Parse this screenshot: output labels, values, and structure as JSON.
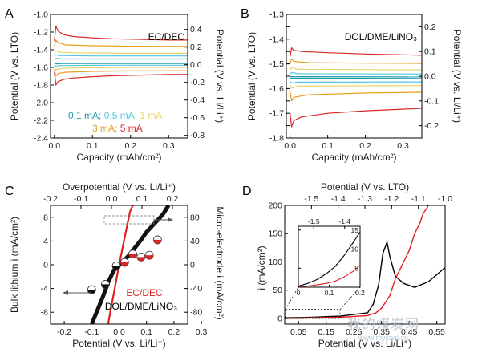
{
  "chart_data": [
    {
      "panel": "A",
      "type": "line",
      "xlabel": "Capacity (mAh/cm²)",
      "ylabel": "Potential (V vs. LTO)",
      "ylabel_right": "Potential (V vs. Li/Li⁺)",
      "xlim": [
        -0.01,
        0.35
      ],
      "ylim": [
        -2.4,
        -1.0
      ],
      "ylim_right": [
        -0.83,
        0.57
      ],
      "xticks": [
        "0.0",
        "0.1",
        "0.2",
        "0.3"
      ],
      "xtick_values": [
        0,
        0.1,
        0.2,
        0.3
      ],
      "yticks": [
        "-2.4",
        "-2.2",
        "-2.0",
        "-1.8",
        "-1.6",
        "-1.4",
        "-1.2",
        "-1.0"
      ],
      "ytick_values": [
        -2.4,
        -2.2,
        -2.0,
        -1.8,
        -1.6,
        -1.4,
        -1.2,
        -1.0
      ],
      "yticks_right": [
        "-0.8",
        "-0.6",
        "-0.4",
        "-0.2",
        "0.0",
        "0.2",
        "0.4"
      ],
      "ytick_right_values": [
        -0.8,
        -0.6,
        -0.4,
        -0.2,
        0.0,
        0.2,
        0.4
      ],
      "annotation": "EC/DEC",
      "legend_lines": [
        [
          {
            "text": "0.1 mA; ",
            "color": "#1f9bb0"
          },
          {
            "text": "0.5 mA; ",
            "color": "#4fc8e0"
          },
          {
            "text": "1 mA",
            "color": "#e6d66a"
          }
        ],
        [
          {
            "text": "3 mA; ",
            "color": "#e8a020"
          },
          {
            "text": "5 mA",
            "color": "#d92626"
          }
        ]
      ],
      "series": [
        {
          "name": "5 mA",
          "color": "#d92626",
          "x": [
            0,
            0.004,
            0.01,
            0.025,
            0.05,
            0.1,
            0.15,
            0.2,
            0.25,
            0.3,
            0.35
          ],
          "y": [
            -1.3,
            -1.13,
            -1.19,
            -1.23,
            -1.25,
            -1.265,
            -1.275,
            -1.28,
            -1.285,
            -1.29,
            -1.29
          ]
        },
        {
          "name": "3 mA",
          "color": "#e8a020",
          "x": [
            0,
            0.004,
            0.01,
            0.03,
            0.1,
            0.2,
            0.35
          ],
          "y": [
            -1.36,
            -1.29,
            -1.32,
            -1.345,
            -1.355,
            -1.36,
            -1.362
          ]
        },
        {
          "name": "1 mA",
          "color": "#e6d66a",
          "x": [
            0,
            0.004,
            0.01,
            0.05,
            0.2,
            0.35
          ],
          "y": [
            -1.44,
            -1.41,
            -1.425,
            -1.435,
            -1.44,
            -1.44
          ]
        },
        {
          "name": "0.5 mA",
          "color": "#4fc8e0",
          "x": [
            0,
            0.004,
            0.01,
            0.1,
            0.35
          ],
          "y": [
            -1.47,
            -1.455,
            -1.465,
            -1.47,
            -1.47
          ]
        },
        {
          "name": "0.1 mA",
          "color": "#1f9bb0",
          "x": [
            0,
            0.004,
            0.02,
            0.35
          ],
          "y": [
            -1.51,
            -1.5,
            -1.505,
            -1.505
          ]
        },
        {
          "name": "0.1 mA",
          "color": "#1f9bb0",
          "x": [
            0,
            0.004,
            0.02,
            0.35
          ],
          "y": [
            -1.55,
            -1.56,
            -1.555,
            -1.555
          ]
        },
        {
          "name": "0.5 mA",
          "color": "#4fc8e0",
          "x": [
            0,
            0.004,
            0.01,
            0.1,
            0.35
          ],
          "y": [
            -1.57,
            -1.59,
            -1.58,
            -1.575,
            -1.575
          ]
        },
        {
          "name": "1 mA",
          "color": "#e6d66a",
          "x": [
            0,
            0.004,
            0.01,
            0.05,
            0.2,
            0.35
          ],
          "y": [
            -1.59,
            -1.63,
            -1.615,
            -1.605,
            -1.6,
            -1.6
          ]
        },
        {
          "name": "3 mA",
          "color": "#e8a020",
          "x": [
            0,
            0.004,
            0.01,
            0.03,
            0.1,
            0.2,
            0.35
          ],
          "y": [
            -1.62,
            -1.7,
            -1.67,
            -1.655,
            -1.645,
            -1.64,
            -1.638
          ]
        },
        {
          "name": "5 mA",
          "color": "#d92626",
          "x": [
            0,
            0.004,
            0.01,
            0.025,
            0.05,
            0.1,
            0.15,
            0.2,
            0.25,
            0.3,
            0.35
          ],
          "y": [
            -1.65,
            -1.8,
            -1.76,
            -1.735,
            -1.72,
            -1.705,
            -1.695,
            -1.69,
            -1.685,
            -1.68,
            -1.68
          ]
        }
      ]
    },
    {
      "panel": "B",
      "type": "line",
      "xlabel": "Capacity (mAh/cm²)",
      "ylabel": "Potential (V vs. LTO)",
      "ylabel_right": "Potential (V vs. Li/Li⁺)",
      "xlim": [
        -0.01,
        0.35
      ],
      "ylim": [
        -1.8,
        -1.3
      ],
      "ylim_right": [
        -0.25,
        0.25
      ],
      "xticks": [
        "0.0",
        "0.1",
        "0.2",
        "0.3"
      ],
      "xtick_values": [
        0,
        0.1,
        0.2,
        0.3
      ],
      "yticks": [
        "-1.8",
        "-1.75",
        "-1.7",
        "-1.65",
        "-1.6",
        "-1.55",
        "-1.5",
        "-1.45",
        "-1.4",
        "-1.35",
        "-1.3"
      ],
      "ytick_values": [
        -1.8,
        -1.75,
        -1.7,
        -1.65,
        -1.6,
        -1.55,
        -1.5,
        -1.45,
        -1.4,
        -1.35,
        -1.3
      ],
      "ytick_labels_shown": [
        "-1.8",
        "",
        "-1.7",
        "",
        "-1.6",
        "",
        "-1.5",
        "",
        "-1.4",
        "",
        "-1.3"
      ],
      "yticks_right": [
        "-0.2",
        "-0.1",
        "0.0",
        "0.1",
        "0.2"
      ],
      "ytick_right_values": [
        -0.2,
        -0.1,
        0.0,
        0.1,
        0.2
      ],
      "annotation": "DOL/DME/LiNO₃",
      "series": [
        {
          "name": "5 mA",
          "color": "#d92626",
          "x": [
            0,
            0.004,
            0.01,
            0.03,
            0.1,
            0.2,
            0.35
          ],
          "y": [
            -1.47,
            -1.435,
            -1.445,
            -1.45,
            -1.455,
            -1.46,
            -1.465
          ]
        },
        {
          "name": "3 mA",
          "color": "#e8a020",
          "x": [
            0,
            0.004,
            0.01,
            0.05,
            0.2,
            0.35
          ],
          "y": [
            -1.5,
            -1.48,
            -1.49,
            -1.495,
            -1.497,
            -1.498
          ]
        },
        {
          "name": "1 mA",
          "color": "#e6d66a",
          "x": [
            0,
            0.004,
            0.02,
            0.35
          ],
          "y": [
            -1.525,
            -1.515,
            -1.522,
            -1.524
          ]
        },
        {
          "name": "0.5 mA",
          "color": "#4fc8e0",
          "x": [
            0,
            0.004,
            0.02,
            0.35
          ],
          "y": [
            -1.542,
            -1.535,
            -1.54,
            -1.541
          ]
        },
        {
          "name": "0.1 mA",
          "color": "#1f9bb0",
          "x": [
            0,
            0.35
          ],
          "y": [
            -1.552,
            -1.553
          ]
        },
        {
          "name": "0.1 mA",
          "color": "#1f9bb0",
          "x": [
            0,
            0.35
          ],
          "y": [
            -1.558,
            -1.559
          ]
        },
        {
          "name": "0.5 mA",
          "color": "#4fc8e0",
          "x": [
            0,
            0.004,
            0.02,
            0.35
          ],
          "y": [
            -1.57,
            -1.578,
            -1.574,
            -1.573
          ]
        },
        {
          "name": "1 mA",
          "color": "#e6d66a",
          "x": [
            0,
            0.004,
            0.02,
            0.35
          ],
          "y": [
            -1.585,
            -1.598,
            -1.59,
            -1.588
          ]
        },
        {
          "name": "3 mA",
          "color": "#e8a020",
          "x": [
            0,
            0.004,
            0.01,
            0.05,
            0.2,
            0.35
          ],
          "y": [
            -1.61,
            -1.65,
            -1.635,
            -1.625,
            -1.618,
            -1.615
          ]
        },
        {
          "name": "5 mA",
          "color": "#d92626",
          "x": [
            0,
            0.004,
            0.01,
            0.03,
            0.1,
            0.2,
            0.35
          ],
          "y": [
            -1.7,
            -1.755,
            -1.73,
            -1.715,
            -1.7,
            -1.69,
            -1.68
          ]
        }
      ]
    },
    {
      "panel": "C",
      "type": "scatter",
      "xlabel": "Potential (V vs. Li/Li⁺)",
      "xlabel_top": "Overpotential (V vs. Li/Li⁺)",
      "ylabel": "Bulk lithium i (mA/cm²)",
      "ylabel_right": "Micro-electrode i (mA/cm²)",
      "xlim": [
        -0.25,
        0.25
      ],
      "xlim_top": [
        -0.2,
        0.25
      ],
      "ylim": [
        -10,
        10
      ],
      "ylim_right": [
        -100,
        100
      ],
      "xticks": [
        "-0.2",
        "-0.1",
        "0.0",
        "0.1",
        "0.2",
        "0.3"
      ],
      "xtick_values": [
        -0.2,
        -0.1,
        0.0,
        0.1,
        0.2,
        0.3
      ],
      "xticks_top": [
        "-0.2",
        "-0.1",
        "0.0",
        "0.1",
        "0.2"
      ],
      "xtick_top_values": [
        -0.2,
        -0.1,
        0.0,
        0.1,
        0.2
      ],
      "yticks": [
        "-8",
        "-4",
        "0",
        "4",
        "8"
      ],
      "ytick_values": [
        -8,
        -4,
        0,
        4,
        8
      ],
      "yticks_right": [
        "-80",
        "-40",
        "0",
        "40",
        "80"
      ],
      "ytick_right_values": [
        -80,
        -40,
        0,
        40,
        80
      ],
      "legend": [
        {
          "text": "EC/DEC",
          "color": "#d92626"
        },
        {
          "text": "DOL/DME/LiNO₃",
          "color": "#000000"
        }
      ],
      "series": [
        {
          "name": "EC/DEC",
          "kind": "line",
          "color": "#e02020",
          "x": [
            -0.04,
            -0.03,
            -0.02,
            -0.01,
            0.0,
            0.01,
            0.02,
            0.03,
            0.04,
            0.05
          ],
          "y": [
            -100,
            -75,
            -50,
            -25,
            0,
            22,
            45,
            68,
            90,
            100
          ],
          "axis": "right"
        },
        {
          "name": "DOL/DME/LiNO₃",
          "kind": "line",
          "color": "#111111",
          "x": [
            -0.1,
            -0.08,
            -0.06,
            -0.04,
            -0.02,
            0.0,
            0.02,
            0.04,
            0.06,
            0.08,
            0.1,
            0.12,
            0.14,
            0.16,
            0.18
          ],
          "y": [
            -100,
            -78,
            -55,
            -30,
            -10,
            0,
            8,
            18,
            30,
            42,
            55,
            65,
            75,
            85,
            100
          ],
          "axis": "right"
        },
        {
          "name": "half-filled markers",
          "kind": "points",
          "color": "#d92626",
          "x": [
            -0.1,
            -0.05,
            -0.01,
            0.02,
            0.05,
            0.08,
            0.11,
            0.14
          ],
          "y": [
            -4.2,
            -3.3,
            -0.2,
            0.4,
            1.8,
            1.3,
            1.6,
            4.2
          ],
          "axis": "left"
        }
      ],
      "arrows": [
        "left-axis",
        "right-axis"
      ]
    },
    {
      "panel": "D",
      "type": "line",
      "xlabel": "Potential (V vs. Li/Li⁺)",
      "xlabel_top": "Potential (V vs. LTO)",
      "ylabel": "i (mA/cm²)",
      "xlim": [
        0.0,
        0.58
      ],
      "xlim_top": [
        -1.6,
        -1.0
      ],
      "ylim": [
        -10,
        200
      ],
      "xticks": [
        "0.05",
        "0.15",
        "0.25",
        "0.35",
        "0.45",
        "0.55"
      ],
      "xtick_values": [
        0.05,
        0.15,
        0.25,
        0.35,
        0.45,
        0.55
      ],
      "xticks_top": [
        "-1.5",
        "-1.4",
        "-1.3",
        "-1.2",
        "-1.1",
        "-1.0"
      ],
      "xtick_top_values": [
        -1.5,
        -1.4,
        -1.3,
        -1.2,
        -1.1,
        -1.0
      ],
      "yticks": [
        "0",
        "50",
        "100",
        "150",
        "200"
      ],
      "ytick_values": [
        0,
        50,
        100,
        150,
        200
      ],
      "series": [
        {
          "name": "black",
          "color": "#000000",
          "x": [
            0.0,
            0.1,
            0.2,
            0.3,
            0.32,
            0.34,
            0.355,
            0.37,
            0.38,
            0.4,
            0.43,
            0.47,
            0.52,
            0.58
          ],
          "y": [
            1,
            2,
            4,
            10,
            25,
            60,
            115,
            135,
            110,
            75,
            62,
            55,
            65,
            90
          ]
        },
        {
          "name": "red",
          "color": "#e02020",
          "x": [
            0.0,
            0.1,
            0.2,
            0.3,
            0.33,
            0.35,
            0.38,
            0.4,
            0.43,
            0.45,
            0.47,
            0.49,
            0.5,
            0.52
          ],
          "y": [
            0,
            1,
            2,
            5,
            10,
            18,
            40,
            70,
            100,
            120,
            150,
            170,
            185,
            200
          ]
        }
      ],
      "inset": {
        "xlim": [
          0.0,
          0.2
        ],
        "ylim": [
          0,
          16
        ],
        "xticks": [
          "0",
          "0.1",
          "0.2"
        ],
        "xtick_values": [
          0,
          0.1,
          0.2
        ],
        "xticks_top": [
          "-1.5",
          "-1.4"
        ],
        "xtick_top_values": [
          0.05,
          0.15
        ],
        "yticks": [
          "0",
          "5",
          "10",
          "15"
        ],
        "ytick_values": [
          0,
          5,
          10,
          15
        ],
        "series": [
          {
            "name": "black",
            "color": "#000000",
            "x": [
              0.0,
              0.03,
              0.06,
              0.09,
              0.12,
              0.15,
              0.18,
              0.2
            ],
            "y": [
              0.3,
              1.0,
              2.0,
              3.5,
              5.5,
              8.5,
              12,
              14.5
            ]
          },
          {
            "name": "red",
            "color": "#e02020",
            "x": [
              0.0,
              0.03,
              0.06,
              0.09,
              0.12,
              0.15,
              0.18,
              0.2
            ],
            "y": [
              0.1,
              0.3,
              0.6,
              1.0,
              1.6,
              2.8,
              4.3,
              5.8
            ]
          }
        ]
      }
    }
  ],
  "panel_labels": [
    "A",
    "B",
    "C",
    "D"
  ],
  "watermark": {
    "text": "我的煤炭网",
    "url": "www.mycoal.cn"
  }
}
